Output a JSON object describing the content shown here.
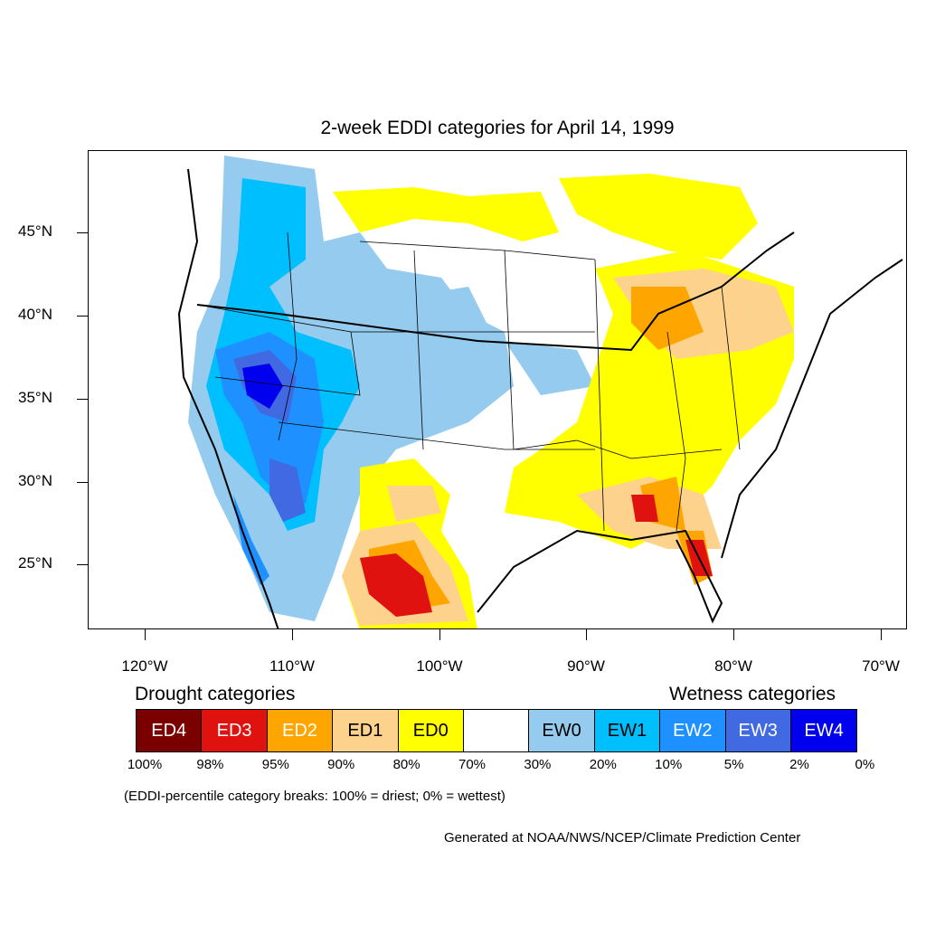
{
  "title": "2-week EDDI categories for April 14, 1999",
  "lat_labels": [
    "45°N",
    "40°N",
    "35°N",
    "30°N",
    "25°N"
  ],
  "lon_labels": [
    "120°W",
    "110°W",
    "100°W",
    "90°W",
    "80°W",
    "70°W"
  ],
  "legend": {
    "drought_heading": "Drought categories",
    "wetness_heading": "Wetness categories",
    "categories": [
      {
        "label": "ED4",
        "color": "#7a0000",
        "text_color": "#ffffff"
      },
      {
        "label": "ED3",
        "color": "#e0120f",
        "text_color": "#ffffff"
      },
      {
        "label": "ED2",
        "color": "#ffa500",
        "text_color": "#ffffff"
      },
      {
        "label": "ED1",
        "color": "#fcd28c",
        "text_color": "#000000"
      },
      {
        "label": "ED0",
        "color": "#ffff00",
        "text_color": "#000000"
      },
      {
        "label": "",
        "color": "#ffffff",
        "text_color": "#000000"
      },
      {
        "label": "EW0",
        "color": "#94cbee",
        "text_color": "#000000"
      },
      {
        "label": "EW1",
        "color": "#00bfff",
        "text_color": "#000000"
      },
      {
        "label": "EW2",
        "color": "#1e90ff",
        "text_color": "#ffffff"
      },
      {
        "label": "EW3",
        "color": "#4169e1",
        "text_color": "#ffffff"
      },
      {
        "label": "EW4",
        "color": "#0000ee",
        "text_color": "#ffffff"
      }
    ],
    "percentiles": [
      "100%",
      "98%",
      "95%",
      "90%",
      "80%",
      "70%",
      "30%",
      "20%",
      "10%",
      "5%",
      "2%",
      "0%"
    ]
  },
  "note": "(EDDI-percentile category breaks: 100% = driest; 0% = wettest)",
  "credit": "Generated at NOAA/NWS/NCEP/Climate Prediction Center"
}
